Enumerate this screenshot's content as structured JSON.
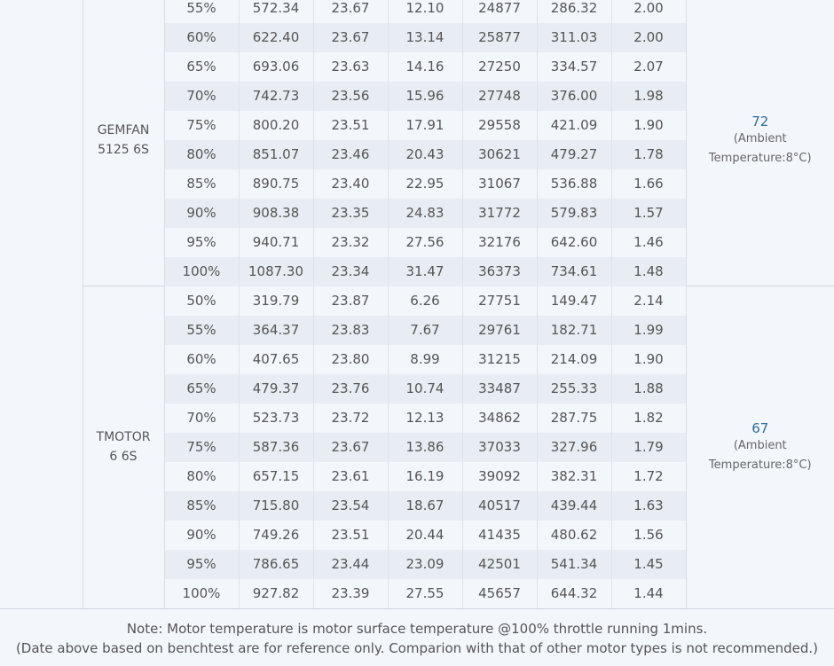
{
  "groups": [
    {
      "model": "GEMFAN\n5125 6S",
      "temp_value": "72",
      "temp_note": "(Ambient\nTemperature:8°C)",
      "rows": [
        [
          "55%",
          "572.34",
          "23.67",
          "12.10",
          "24877",
          "286.32",
          "2.00"
        ],
        [
          "60%",
          "622.40",
          "23.67",
          "13.14",
          "25877",
          "311.03",
          "2.00"
        ],
        [
          "65%",
          "693.06",
          "23.63",
          "14.16",
          "27250",
          "334.57",
          "2.07"
        ],
        [
          "70%",
          "742.73",
          "23.56",
          "15.96",
          "27748",
          "376.00",
          "1.98"
        ],
        [
          "75%",
          "800.20",
          "23.51",
          "17.91",
          "29558",
          "421.09",
          "1.90"
        ],
        [
          "80%",
          "851.07",
          "23.46",
          "20.43",
          "30621",
          "479.27",
          "1.78"
        ],
        [
          "85%",
          "890.75",
          "23.40",
          "22.95",
          "31067",
          "536.88",
          "1.66"
        ],
        [
          "90%",
          "908.38",
          "23.35",
          "24.83",
          "31772",
          "579.83",
          "1.57"
        ],
        [
          "95%",
          "940.71",
          "23.32",
          "27.56",
          "32176",
          "642.60",
          "1.46"
        ],
        [
          "100%",
          "1087.30",
          "23.34",
          "31.47",
          "36373",
          "734.61",
          "1.48"
        ]
      ]
    },
    {
      "model": "TMOTOR\n6 6S",
      "temp_value": "67",
      "temp_note": "(Ambient\nTemperature:8°C)",
      "rows": [
        [
          "50%",
          "319.79",
          "23.87",
          "6.26",
          "27751",
          "149.47",
          "2.14"
        ],
        [
          "55%",
          "364.37",
          "23.83",
          "7.67",
          "29761",
          "182.71",
          "1.99"
        ],
        [
          "60%",
          "407.65",
          "23.80",
          "8.99",
          "31215",
          "214.09",
          "1.90"
        ],
        [
          "65%",
          "479.37",
          "23.76",
          "10.74",
          "33487",
          "255.33",
          "1.88"
        ],
        [
          "70%",
          "523.73",
          "23.72",
          "12.13",
          "34862",
          "287.75",
          "1.82"
        ],
        [
          "75%",
          "587.36",
          "23.67",
          "13.86",
          "37033",
          "327.96",
          "1.79"
        ],
        [
          "80%",
          "657.15",
          "23.61",
          "16.19",
          "39092",
          "382.31",
          "1.72"
        ],
        [
          "85%",
          "715.80",
          "23.54",
          "18.67",
          "40517",
          "439.44",
          "1.63"
        ],
        [
          "90%",
          "749.26",
          "23.51",
          "20.44",
          "41435",
          "480.62",
          "1.56"
        ],
        [
          "95%",
          "786.65",
          "23.44",
          "23.09",
          "42501",
          "541.34",
          "1.45"
        ],
        [
          "100%",
          "927.82",
          "23.39",
          "27.55",
          "45657",
          "644.32",
          "1.44"
        ]
      ]
    }
  ],
  "note": {
    "line1": "Note: Motor temperature is motor surface temperature @100% throttle running 1mins.",
    "line2": "(Date above based on benchtest are for reference only. Comparion with that of other motor types is not recommended.)"
  }
}
